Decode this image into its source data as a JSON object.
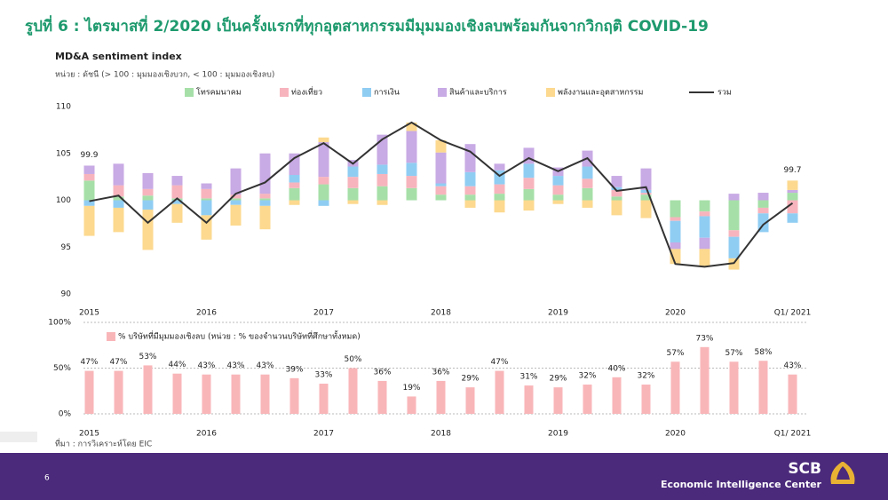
{
  "header": {
    "title": "รูปที่ 6 : ไตรมาสที่ 2/2020 เป็นครั้งแรกที่ทุกอุตสาหกรรมมีมุมมองเชิงลบพร้อมกันจากวิกฤติ COVID-19"
  },
  "chart_data": [
    {
      "type": "combo",
      "title": "MD&A sentiment index",
      "subtitle": "หน่วย : ดัชนี (> 100 : มุมมองเชิงบวก, < 100 : มุมมองเชิงลบ)",
      "categories": [
        "2015",
        null,
        null,
        null,
        "2016",
        null,
        null,
        null,
        "2017",
        null,
        null,
        null,
        "2018",
        null,
        null,
        null,
        "2019",
        null,
        null,
        null,
        "2020",
        null,
        null,
        null,
        "Q1/ 2021"
      ],
      "baseline": 100,
      "ylim": [
        90,
        110
      ],
      "yticks": [
        90,
        95,
        100,
        105,
        110
      ],
      "series": [
        {
          "name": "โทรคมนาคม",
          "color": "#a6e0a8",
          "values": [
            2.1,
            0.4,
            0.5,
            0.2,
            0.2,
            0.2,
            0.2,
            1.3,
            1.7,
            1.3,
            1.5,
            1.3,
            0.6,
            0.6,
            0.7,
            1.2,
            0.6,
            1.3,
            0.4,
            0.6,
            -1.8,
            -1.2,
            -3.2,
            -0.8,
            0.8
          ]
        },
        {
          "name": "ท่องเที่ยว",
          "color": "#f7b4bd",
          "values": [
            0.7,
            1.2,
            0.7,
            1.4,
            1.0,
            0.4,
            0.5,
            0.6,
            0.8,
            1.2,
            1.3,
            1.3,
            0.9,
            0.9,
            1.0,
            1.2,
            1.0,
            1.0,
            0.7,
            0.2,
            -0.4,
            -0.5,
            -0.7,
            -0.6,
            -1.4
          ]
        },
        {
          "name": "การเงิน",
          "color": "#90cdf3",
          "values": [
            -0.6,
            -0.8,
            -1.0,
            -0.4,
            -1.6,
            -0.5,
            -0.6,
            0.8,
            -0.6,
            1.1,
            1.0,
            1.4,
            0.3,
            1.5,
            1.5,
            1.5,
            1.0,
            1.3,
            0.3,
            0.3,
            -2.3,
            -2.3,
            -2.3,
            -2.0,
            -1.0
          ]
        },
        {
          "name": "สินค้าและบริการ",
          "color": "#c8aae4",
          "values": [
            0.9,
            2.3,
            1.7,
            1.0,
            0.6,
            2.8,
            4.3,
            2.3,
            3.7,
            0.7,
            3.2,
            3.4,
            3.3,
            3.0,
            0.7,
            1.7,
            0.9,
            1.7,
            1.2,
            2.3,
            -0.7,
            -1.2,
            0.7,
            0.8,
            0.3
          ]
        },
        {
          "name": "พลังงานและอุตสาหกรรม",
          "color": "#fcd98f",
          "values": [
            -3.2,
            -2.6,
            -4.3,
            -2.0,
            -2.6,
            -2.2,
            -2.5,
            -0.5,
            0.5,
            -0.4,
            -0.5,
            0.9,
            1.3,
            -0.8,
            -1.3,
            -1.1,
            -0.4,
            -0.8,
            -1.6,
            -1.9,
            -1.6,
            -1.9,
            -1.2,
            0,
            1.0
          ]
        },
        {
          "name": "รวม",
          "type": "line",
          "color": "#333333",
          "values": [
            99.9,
            100.5,
            97.6,
            100.2,
            97.6,
            100.7,
            101.9,
            104.5,
            106.1,
            103.9,
            106.5,
            108.3,
            106.4,
            105.2,
            102.6,
            104.5,
            103.1,
            104.5,
            101.0,
            101.4,
            93.2,
            92.9,
            93.3,
            97.4,
            99.7
          ],
          "value_labels": [
            "99.9",
            null,
            null,
            null,
            null,
            null,
            null,
            null,
            null,
            null,
            null,
            null,
            null,
            null,
            null,
            null,
            null,
            null,
            null,
            null,
            null,
            null,
            null,
            null,
            "99.7"
          ]
        }
      ]
    },
    {
      "type": "bar",
      "categories": [
        "2015",
        null,
        null,
        null,
        "2016",
        null,
        null,
        null,
        "2017",
        null,
        null,
        null,
        "2018",
        null,
        null,
        null,
        "2019",
        null,
        null,
        null,
        "2020",
        null,
        null,
        null,
        "Q1/ 2021"
      ],
      "ylim": [
        0,
        100
      ],
      "yticks": [
        {
          "value": 0,
          "label": "0%"
        },
        {
          "value": 50,
          "label": "50%"
        },
        {
          "value": 100,
          "label": "100%"
        }
      ],
      "series": [
        {
          "name": "% บริษัทที่มีมุมมองเชิงลบ (หน่วย : % ของจำนวนบริษัทที่ศึกษาทั้งหมด)",
          "color": "#f9b6b9",
          "values": [
            47,
            47,
            53,
            44,
            43,
            43,
            43,
            39,
            33,
            50,
            36,
            19,
            36,
            29,
            47,
            31,
            29,
            32,
            40,
            32,
            57,
            73,
            57,
            58,
            43
          ],
          "value_labels": [
            "47%",
            "47%",
            "53%",
            "44%",
            "43%",
            "43%",
            "43%",
            "39%",
            "33%",
            "50%",
            "36%",
            "19%",
            "36%",
            "29%",
            "47%",
            "31%",
            "29%",
            "32%",
            "40%",
            "32%",
            "57%",
            "73%",
            "57%",
            "58%",
            "43%"
          ]
        }
      ]
    }
  ],
  "footer": {
    "source": "ที่มา : การวิเคราะห์โดย EIC",
    "page": "6",
    "brand": "SCB",
    "unit": "Economic Intelligence Center"
  }
}
